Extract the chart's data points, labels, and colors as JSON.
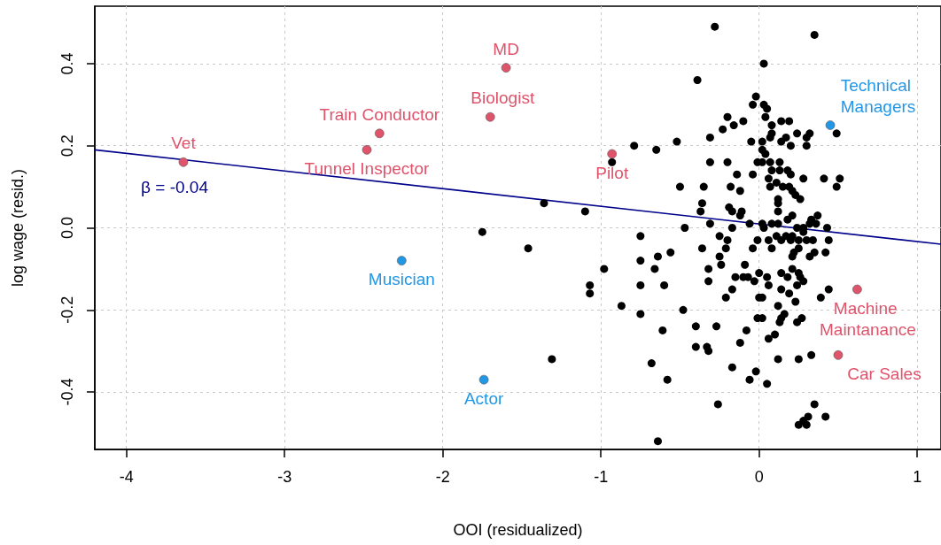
{
  "chart_data": {
    "type": "scatter",
    "xlabel": "OOI (residualized)",
    "ylabel": "log wage (resid.)",
    "xlim": [
      -4.2,
      1.15
    ],
    "ylim": [
      -0.54,
      0.54
    ],
    "xticks": [
      -4,
      -3,
      -2,
      -1,
      0,
      1
    ],
    "yticks": [
      {
        "value": -0.4,
        "label": "-0.4"
      },
      {
        "value": -0.2,
        "label": "-0.2"
      },
      {
        "value": 0,
        "label": "0.0"
      },
      {
        "value": 0.2,
        "label": "0.2"
      },
      {
        "value": 0.4,
        "label": "0.4"
      }
    ],
    "grid": true,
    "marker": "circle",
    "annotations": [
      "β = -0.04"
    ],
    "series": [
      {
        "color": "#000000",
        "x": [
          -1.75,
          -1.46,
          -0.79,
          -0.65,
          -0.52,
          -0.93,
          -0.5,
          -1.36,
          -1.1,
          -0.28,
          0.35,
          0.03,
          -0.39,
          -0.02,
          -0.04,
          0.03,
          0.05,
          0.04,
          -0.2,
          -0.23,
          -0.16,
          -0.1,
          0.08,
          0.14,
          0.19,
          -0.31,
          0.08,
          0.07,
          0.17,
          0.24,
          0.3,
          0.32,
          0.49,
          -0.05,
          0.02,
          0.14,
          0.2,
          0.3,
          0.02,
          0.04,
          -0.31,
          -0.2,
          -0.01,
          0.02,
          0.07,
          0.13,
          0.08,
          0.13,
          0.18,
          -0.14,
          -0.04,
          0.2,
          0.06,
          0.28,
          0.41,
          0.51,
          0.49,
          -0.35,
          -0.18,
          0.07,
          0.11,
          0.15,
          0.19,
          -0.12,
          0.21,
          0.23,
          0.12,
          0.26,
          -0.36,
          0.12,
          -0.19,
          -0.17,
          -0.11,
          -0.12,
          -0.37,
          0.12,
          0.21,
          0.18,
          0.37,
          0.33,
          -0.47,
          -0.75,
          -0.56,
          -0.64,
          -0.75,
          -0.98,
          -0.66,
          -1.07,
          -1.07,
          -0.75,
          -0.6,
          -0.87,
          -0.75,
          -0.48,
          -0.61,
          -1.31,
          -0.68,
          -0.58,
          -0.64,
          -0.31,
          -0.17,
          -0.06,
          0.02,
          0.03,
          0.08,
          0.12,
          0.24,
          0.28,
          0.32,
          0.36,
          0.43,
          -0.25,
          -0.2,
          -0.36,
          -0.21,
          -0.01,
          0.06,
          0.08,
          0.11,
          0.14,
          0.17,
          0.21,
          0.2,
          0.25,
          0.28,
          0.3,
          0.34,
          0.44,
          -0.04,
          -0.25,
          0.22,
          0.25,
          0.21,
          0.32,
          0.35,
          0.42,
          -0.32,
          -0.24,
          -0.15,
          -0.09,
          -0.1,
          -0.07,
          0.0,
          0.05,
          0.06,
          0.14,
          0.18,
          0.21,
          0.25,
          0.26,
          0.28,
          0.24,
          -0.32,
          -0.03,
          0.14,
          0.19,
          0.23,
          0.44,
          0.39,
          -0.17,
          -0.21,
          0.0,
          0.02,
          0.12,
          0.16,
          0.14,
          0.13,
          0.27,
          0.24,
          -0.01,
          0.02,
          -0.4,
          -0.27,
          -0.08,
          0.1,
          0.06,
          -0.12,
          -0.4,
          -0.33,
          -0.32,
          0.12,
          0.25,
          0.33,
          -0.17,
          -0.02,
          -0.06,
          0.05,
          -0.26,
          0.35,
          0.42,
          0.31,
          0.28,
          0.25,
          0.3
        ],
        "values": [
          -0.01,
          -0.05,
          0.2,
          0.19,
          0.21,
          0.16,
          0.1,
          0.06,
          0.04,
          0.49,
          0.47,
          0.4,
          0.36,
          0.32,
          0.3,
          0.3,
          0.29,
          0.27,
          0.27,
          0.24,
          0.25,
          0.26,
          0.25,
          0.26,
          0.26,
          0.22,
          0.23,
          0.22,
          0.22,
          0.23,
          0.22,
          0.23,
          0.23,
          0.21,
          0.21,
          0.21,
          0.2,
          0.2,
          0.19,
          0.18,
          0.16,
          0.16,
          0.16,
          0.16,
          0.16,
          0.16,
          0.14,
          0.14,
          0.14,
          0.13,
          0.13,
          0.13,
          0.12,
          0.12,
          0.12,
          0.12,
          0.1,
          0.1,
          0.1,
          0.1,
          0.11,
          0.1,
          0.1,
          0.09,
          0.09,
          0.08,
          0.07,
          0.07,
          0.06,
          0.06,
          0.05,
          0.04,
          0.04,
          0.03,
          0.04,
          0.04,
          0.03,
          0.02,
          0.03,
          0.02,
          0.0,
          -0.02,
          -0.06,
          -0.07,
          -0.08,
          -0.1,
          -0.1,
          -0.14,
          -0.16,
          -0.14,
          -0.14,
          -0.19,
          -0.21,
          -0.2,
          -0.25,
          -0.32,
          -0.33,
          -0.37,
          -0.52,
          0.01,
          0.0,
          0.01,
          0.01,
          0.0,
          0.01,
          0.01,
          0.0,
          0.0,
          0.01,
          0.01,
          0.0,
          -0.02,
          -0.03,
          -0.05,
          -0.05,
          -0.03,
          -0.03,
          -0.05,
          -0.02,
          -0.03,
          -0.02,
          -0.02,
          -0.03,
          -0.03,
          -0.01,
          -0.03,
          -0.03,
          -0.03,
          -0.05,
          -0.07,
          -0.06,
          -0.05,
          -0.07,
          -0.07,
          -0.06,
          -0.06,
          -0.1,
          -0.09,
          -0.12,
          -0.09,
          -0.12,
          -0.12,
          -0.11,
          -0.12,
          -0.14,
          -0.11,
          -0.12,
          -0.1,
          -0.11,
          -0.12,
          -0.13,
          -0.14,
          -0.13,
          -0.13,
          -0.15,
          -0.16,
          -0.18,
          -0.15,
          -0.17,
          -0.15,
          -0.17,
          -0.17,
          -0.17,
          -0.19,
          -0.21,
          -0.22,
          -0.23,
          -0.22,
          -0.23,
          -0.22,
          -0.22,
          -0.24,
          -0.24,
          -0.25,
          -0.26,
          -0.27,
          -0.28,
          -0.29,
          -0.29,
          -0.3,
          -0.32,
          -0.32,
          -0.31,
          -0.34,
          -0.35,
          -0.37,
          -0.38,
          -0.43,
          -0.43,
          -0.46,
          -0.46,
          -0.47,
          -0.48,
          -0.48
        ]
      },
      {
        "color": "#df536b",
        "x": [
          -3.64,
          -1.6,
          -1.7,
          -2.4,
          -2.48,
          -0.93,
          0.62,
          0.5
        ],
        "values": [
          0.16,
          0.39,
          0.27,
          0.23,
          0.19,
          0.18,
          -0.15,
          -0.31
        ],
        "value_labels": [
          "Vet",
          "MD",
          "Biologist",
          "Train Conductor",
          "Tunnel Inspector",
          "Pilot",
          "Machine Maintanance",
          "Car Sales"
        ]
      },
      {
        "color": "#2297e6",
        "x": [
          -2.26,
          -1.74,
          0.45
        ],
        "values": [
          -0.08,
          -0.37,
          0.25
        ],
        "value_labels": [
          "Musician",
          "Actor",
          "Technical Managers"
        ]
      },
      {
        "type": "line",
        "color": "#00008b",
        "marker": "none",
        "x": [
          -4.2,
          1.15
        ],
        "values": [
          0.19,
          -0.04
        ]
      }
    ]
  }
}
